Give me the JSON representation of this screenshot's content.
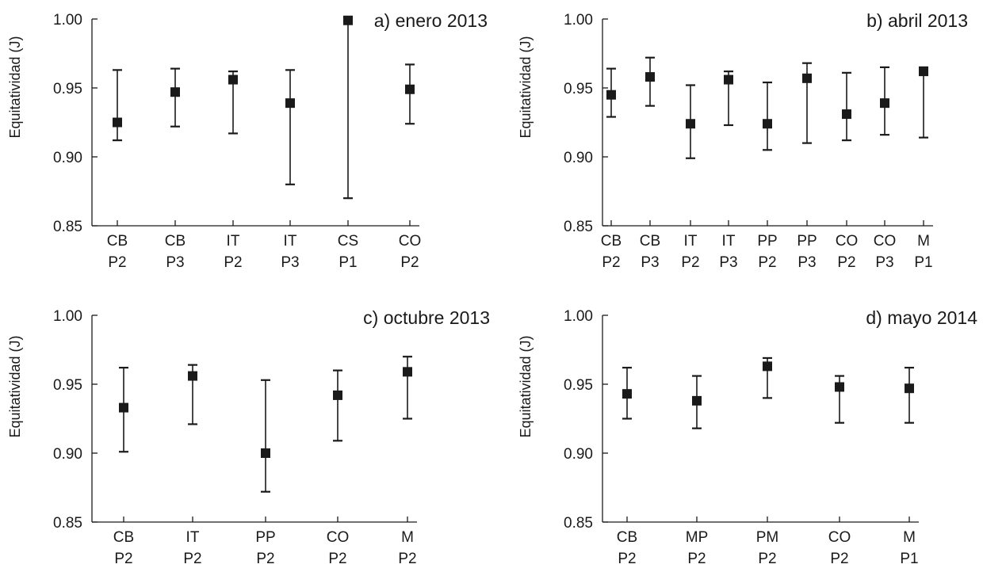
{
  "figure": {
    "ylabel": "Equitatividad (J)"
  },
  "chart_data": [
    {
      "type": "scatter",
      "title": "a) enero 2013",
      "ylabel": "Equitatividad (J)",
      "ylim": [
        0.85,
        1.0
      ],
      "yticks": [
        "0.85",
        "0.90",
        "0.95",
        "1.00"
      ],
      "categories": [
        [
          "CB",
          "P2"
        ],
        [
          "CB",
          "P3"
        ],
        [
          "IT",
          "P2"
        ],
        [
          "IT",
          "P3"
        ],
        [
          "CS",
          "P1"
        ],
        [
          "CO",
          "P2"
        ]
      ],
      "values": [
        0.925,
        0.947,
        0.956,
        0.939,
        0.999,
        0.949
      ],
      "lower": [
        0.912,
        0.922,
        0.917,
        0.88,
        0.87,
        0.924
      ],
      "upper": [
        0.963,
        0.964,
        0.962,
        0.963,
        1.0,
        0.967
      ]
    },
    {
      "type": "scatter",
      "title": "b) abril 2013",
      "ylabel": "Equitatividad (J)",
      "ylim": [
        0.85,
        1.0
      ],
      "yticks": [
        "0.85",
        "0.90",
        "0.95",
        "1.00"
      ],
      "categories": [
        [
          "CB",
          "P2"
        ],
        [
          "CB",
          "P3"
        ],
        [
          "IT",
          "P2"
        ],
        [
          "IT",
          "P3"
        ],
        [
          "PP",
          "P2"
        ],
        [
          "PP",
          "P3"
        ],
        [
          "CO",
          "P2"
        ],
        [
          "CO",
          "P3"
        ],
        [
          "M",
          "P1"
        ]
      ],
      "values": [
        0.945,
        0.958,
        0.924,
        0.956,
        0.924,
        0.957,
        0.931,
        0.939,
        0.962
      ],
      "lower": [
        0.929,
        0.937,
        0.899,
        0.923,
        0.905,
        0.91,
        0.912,
        0.916,
        0.914
      ],
      "upper": [
        0.964,
        0.972,
        0.952,
        0.962,
        0.954,
        0.968,
        0.961,
        0.965,
        0.965
      ]
    },
    {
      "type": "scatter",
      "title": "c) octubre 2013",
      "ylabel": "Equitatividad (J)",
      "ylim": [
        0.85,
        1.0
      ],
      "yticks": [
        "0.85",
        "0.90",
        "0.95",
        "1.00"
      ],
      "categories": [
        [
          "CB",
          "P2"
        ],
        [
          "IT",
          "P2"
        ],
        [
          "PP",
          "P2"
        ],
        [
          "CO",
          "P2"
        ],
        [
          "M",
          "P2"
        ]
      ],
      "values": [
        0.933,
        0.956,
        0.9,
        0.942,
        0.959
      ],
      "lower": [
        0.901,
        0.921,
        0.872,
        0.909,
        0.925
      ],
      "upper": [
        0.962,
        0.964,
        0.953,
        0.96,
        0.97
      ]
    },
    {
      "type": "scatter",
      "title": "d) mayo 2014",
      "ylabel": "Equitatividad (J)",
      "ylim": [
        0.85,
        1.0
      ],
      "yticks": [
        "0.85",
        "0.90",
        "0.95",
        "1.00"
      ],
      "categories": [
        [
          "CB",
          "P2"
        ],
        [
          "MP",
          "P2"
        ],
        [
          "PM",
          "P2"
        ],
        [
          "CO",
          "P2"
        ],
        [
          "M",
          "P1"
        ]
      ],
      "values": [
        0.943,
        0.938,
        0.963,
        0.948,
        0.947
      ],
      "lower": [
        0.925,
        0.918,
        0.94,
        0.922,
        0.922
      ],
      "upper": [
        0.962,
        0.956,
        0.969,
        0.956,
        0.962
      ]
    }
  ]
}
